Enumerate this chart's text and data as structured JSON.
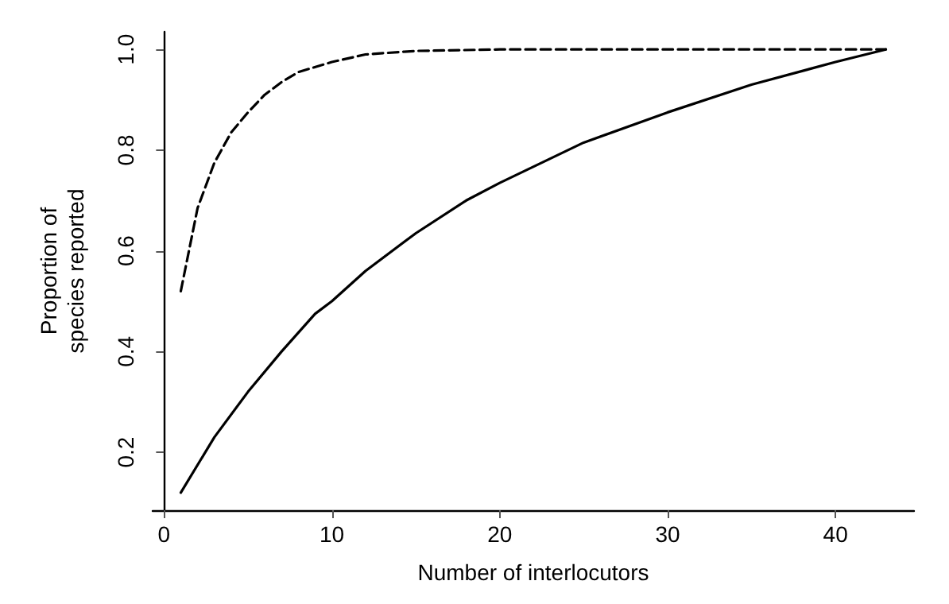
{
  "chart_data": {
    "type": "line",
    "xlabel": "Number of interlocutors",
    "ylabel": "Proportion of\nspecies reported",
    "xlim": [
      -0.68,
      44.68
    ],
    "xticks": [
      0,
      10,
      20,
      30,
      40
    ],
    "ylim": [
      0.085,
      1.035
    ],
    "yticks": [
      0.2,
      0.4,
      0.6,
      0.8,
      {
        "value": 1,
        "label": "1.0"
      }
    ],
    "grid": false,
    "marker": "none",
    "series": [
      {
        "color": "#000000",
        "line_style": "solid",
        "x": [
          1,
          3,
          5,
          7,
          9,
          10,
          12,
          15,
          18,
          20,
          25,
          30,
          35,
          40,
          43
        ],
        "values": [
          0.12,
          0.23,
          0.32,
          0.4,
          0.475,
          0.5,
          0.56,
          0.635,
          0.7,
          0.735,
          0.815,
          0.875,
          0.93,
          0.975,
          1.0
        ]
      },
      {
        "color": "#000000",
        "line_style": "dashed",
        "x": [
          1,
          2,
          3,
          4,
          5,
          6,
          7,
          8,
          10,
          12,
          15,
          20,
          30,
          43
        ],
        "values": [
          0.52,
          0.685,
          0.775,
          0.835,
          0.875,
          0.91,
          0.935,
          0.955,
          0.975,
          0.99,
          0.997,
          1.0,
          1.0,
          1.0
        ]
      }
    ]
  }
}
